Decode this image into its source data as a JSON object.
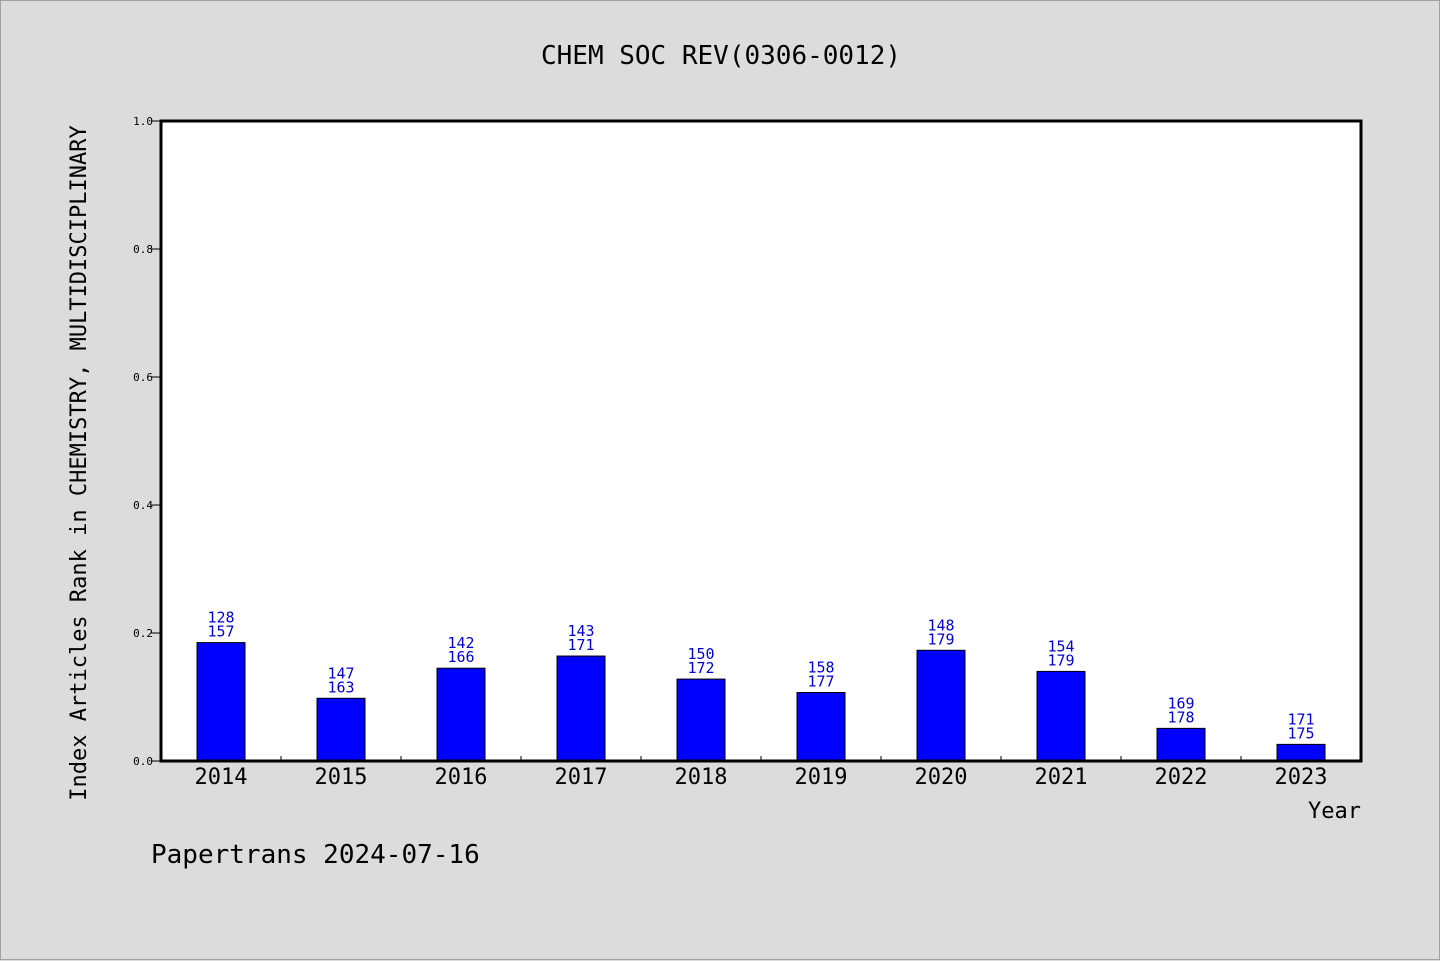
{
  "colors": {
    "background": "#dcdcdc",
    "plot_bg": "#ffffff",
    "bar": "#0000ff",
    "bar_stroke": "#000000",
    "label": "#0000cc"
  },
  "footer": "Papertrans 2024-07-16",
  "chart_data": {
    "type": "bar",
    "title": "CHEM SOC REV(0306-0012)",
    "xlabel": "Year",
    "ylabel": "Index Articles Rank in CHEMISTRY, MULTIDISCIPLINARY",
    "categories": [
      "2014",
      "2015",
      "2016",
      "2017",
      "2018",
      "2019",
      "2020",
      "2021",
      "2022",
      "2023"
    ],
    "values": [
      0.185,
      0.098,
      0.145,
      0.164,
      0.128,
      0.107,
      0.173,
      0.14,
      0.051,
      0.026
    ],
    "rank": [
      "128",
      "147",
      "142",
      "143",
      "150",
      "158",
      "148",
      "154",
      "169",
      "171"
    ],
    "total": [
      "157",
      "163",
      "166",
      "171",
      "172",
      "177",
      "179",
      "179",
      "178",
      "175"
    ],
    "ylim": [
      0,
      1.0
    ],
    "yticks": [
      "0.0",
      "0.2",
      "0.4",
      "0.6",
      "0.8",
      "1.0"
    ],
    "grid": false,
    "legend": "none"
  }
}
